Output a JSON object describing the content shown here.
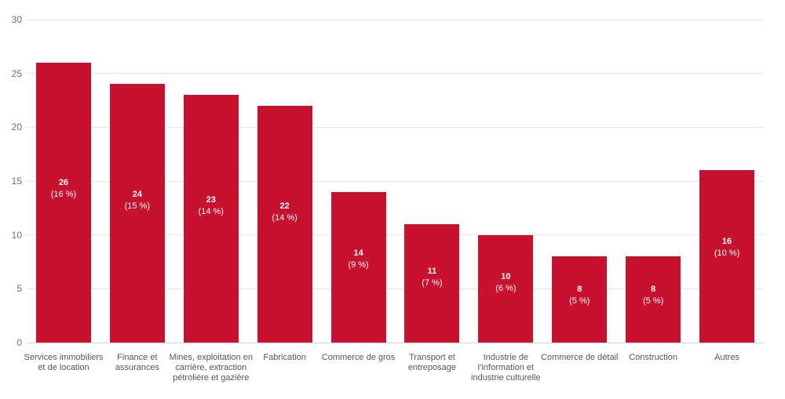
{
  "chart": {
    "background": "#ffffff",
    "bar_color": "#c8112e",
    "grid_color": "#e5e5e5",
    "axis_line_color": "#d4d4d4",
    "tick_label_color": "#6f6f6f",
    "category_label_color": "#565656",
    "bar_label_color": "#ffffff"
  },
  "chart_data": {
    "type": "bar",
    "title": "",
    "xlabel": "",
    "ylabel": "",
    "ylim": [
      0,
      30
    ],
    "yticks": [
      0,
      5,
      10,
      15,
      20,
      25,
      30
    ],
    "grid": true,
    "legend": false,
    "categories": [
      "Services immobiliers et de location",
      "Finance et assurances",
      "Mines, exploitation en carrière, extraction pétrolière et gazière",
      "Fabrication",
      "Commerce de gros",
      "Transport et entreposage",
      "Industrie de l’information et industrie culturelle",
      "Commerce de détail",
      "Construction",
      "Autres"
    ],
    "category_lines": [
      [
        "Services immobiliers",
        "et de location"
      ],
      [
        "Finance et",
        "assurances"
      ],
      [
        "Mines, exploitation en",
        "carrière, extraction",
        "pétrolière et gazière"
      ],
      [
        "Fabrication"
      ],
      [
        "Commerce de gros"
      ],
      [
        "Transport et",
        "entreposage"
      ],
      [
        "Industrie de",
        "l’information et",
        "industrie culturelle"
      ],
      [
        "Commerce de détail"
      ],
      [
        "Construction"
      ],
      [
        "Autres"
      ]
    ],
    "values": [
      26,
      24,
      23,
      22,
      14,
      11,
      10,
      8,
      8,
      16
    ],
    "bar_labels": [
      {
        "value": "26",
        "pct": "(16 %)"
      },
      {
        "value": "24",
        "pct": "(15 %)"
      },
      {
        "value": "23",
        "pct": "(14 %)"
      },
      {
        "value": "22",
        "pct": "(14 %)"
      },
      {
        "value": "14",
        "pct": "(9 %)"
      },
      {
        "value": "11",
        "pct": "(7 %)"
      },
      {
        "value": "10",
        "pct": "(6 %)"
      },
      {
        "value": "8",
        "pct": "(5 %)"
      },
      {
        "value": "8",
        "pct": "(5 %)"
      },
      {
        "value": "16",
        "pct": "(10 %)"
      }
    ]
  }
}
